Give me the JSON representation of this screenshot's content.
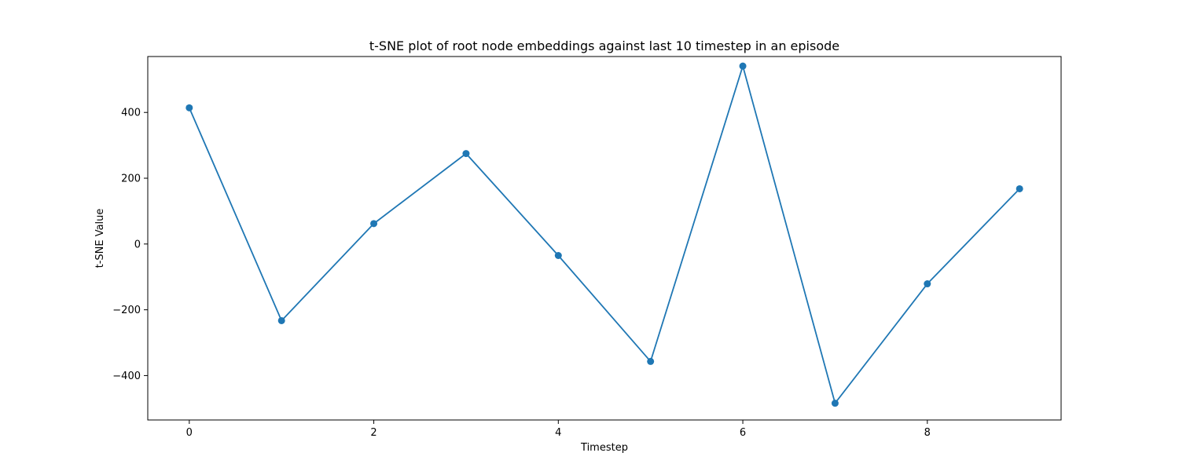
{
  "chart_data": {
    "type": "line",
    "title": "t-SNE plot of root node embeddings against last 10 timestep in an episode",
    "xlabel": "Timestep",
    "ylabel": "t-SNE Value",
    "xlim": [
      -0.45,
      9.45
    ],
    "ylim": [
      -535,
      570
    ],
    "xticks": [
      0,
      2,
      4,
      6,
      8
    ],
    "xtick_labels": [
      "0",
      "2",
      "4",
      "6",
      "8"
    ],
    "yticks": [
      -400,
      -200,
      0,
      200,
      400
    ],
    "ytick_labels": [
      "−400",
      "−200",
      "0",
      "200",
      "400"
    ],
    "grid": false,
    "legend": false,
    "color": "#1f77b4",
    "marker": "circle",
    "x": [
      0,
      1,
      2,
      3,
      4,
      5,
      6,
      7,
      8,
      9
    ],
    "y": [
      414,
      -233,
      62,
      275,
      -35,
      -357,
      541,
      -484,
      -121,
      168
    ]
  }
}
